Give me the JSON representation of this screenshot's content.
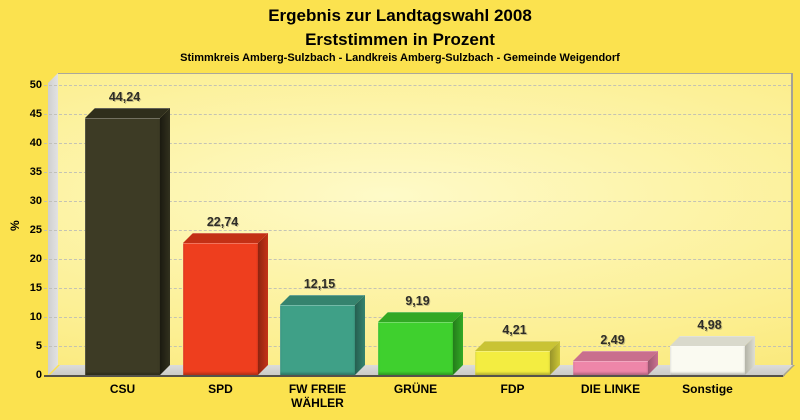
{
  "header": {
    "title_line1": "Ergebnis zur Landtagswahl 2008",
    "title_line2": "Erststimmen in Prozent",
    "subtitle": "Stimmkreis Amberg-Sulzbach - Landkreis Amberg-Sulzbach - Gemeinde Weigendorf"
  },
  "chart_data": {
    "type": "bar",
    "style": "3d-column",
    "title": "Ergebnis zur Landtagswahl 2008",
    "subtitle": "Erststimmen in Prozent",
    "caption": "Stimmkreis Amberg-Sulzbach - Landkreis Amberg-Sulzbach - Gemeinde Weigendorf",
    "xlabel": "",
    "ylabel": "%",
    "ylim": [
      0,
      50
    ],
    "ytick_step": 5,
    "ytick_labels": [
      "0",
      "5",
      "10",
      "15",
      "20",
      "25",
      "30",
      "35",
      "40",
      "45",
      "50"
    ],
    "grid": "horizontal-dashed",
    "legend_position": "none",
    "categories": [
      "CSU",
      "SPD",
      "FW FREIE WÄHLER",
      "GRÜNE",
      "FDP",
      "DIE LINKE",
      "Sonstige"
    ],
    "values": [
      44.24,
      22.74,
      12.15,
      9.19,
      4.21,
      2.49,
      4.98
    ],
    "value_labels": [
      "44,24",
      "22,74",
      "12,15",
      "9,19",
      "4,21",
      "2,49",
      "4,98"
    ],
    "bar_colors": [
      {
        "name": "CSU",
        "front": "#3D3B25",
        "top": "#2F2E1C",
        "side": "#32311E",
        "side_dark": "#1B1A10"
      },
      {
        "name": "SPD",
        "front": "#EE3E1E",
        "top": "#C33015",
        "side": "#C53317",
        "side_dark": "#8E2410"
      },
      {
        "name": "FW",
        "front": "#3FA087",
        "top": "#35836E",
        "side": "#35836E",
        "side_dark": "#255F50"
      },
      {
        "name": "GRUENE",
        "front": "#3FD02E",
        "top": "#32A824",
        "side": "#33AA25",
        "side_dark": "#247C1B"
      },
      {
        "name": "FDP",
        "front": "#F3ED41",
        "top": "#C9C334",
        "side": "#CCC636",
        "side_dark": "#98942A"
      },
      {
        "name": "LINKE",
        "front": "#EE86A9",
        "top": "#C96F8D",
        "side": "#CA7190",
        "side_dark": "#9A5670"
      },
      {
        "name": "Sonstige",
        "front": "#FAFAF1",
        "top": "#D9D9CC",
        "side": "#DEDED2",
        "side_dark": "#B4B4A8"
      }
    ]
  },
  "colors": {
    "page_bg": "#FBE24F",
    "plot_bg_center": "#FEFAC8",
    "plot_bg_edge": "#F8E260",
    "wall": "#D8D8D8",
    "floor": "#D2D2D0",
    "gridline": "#BEBEB6",
    "axis_line": "#55524A",
    "border": "#A5A295",
    "text": "#000000",
    "value_label": "#2E2D28"
  }
}
